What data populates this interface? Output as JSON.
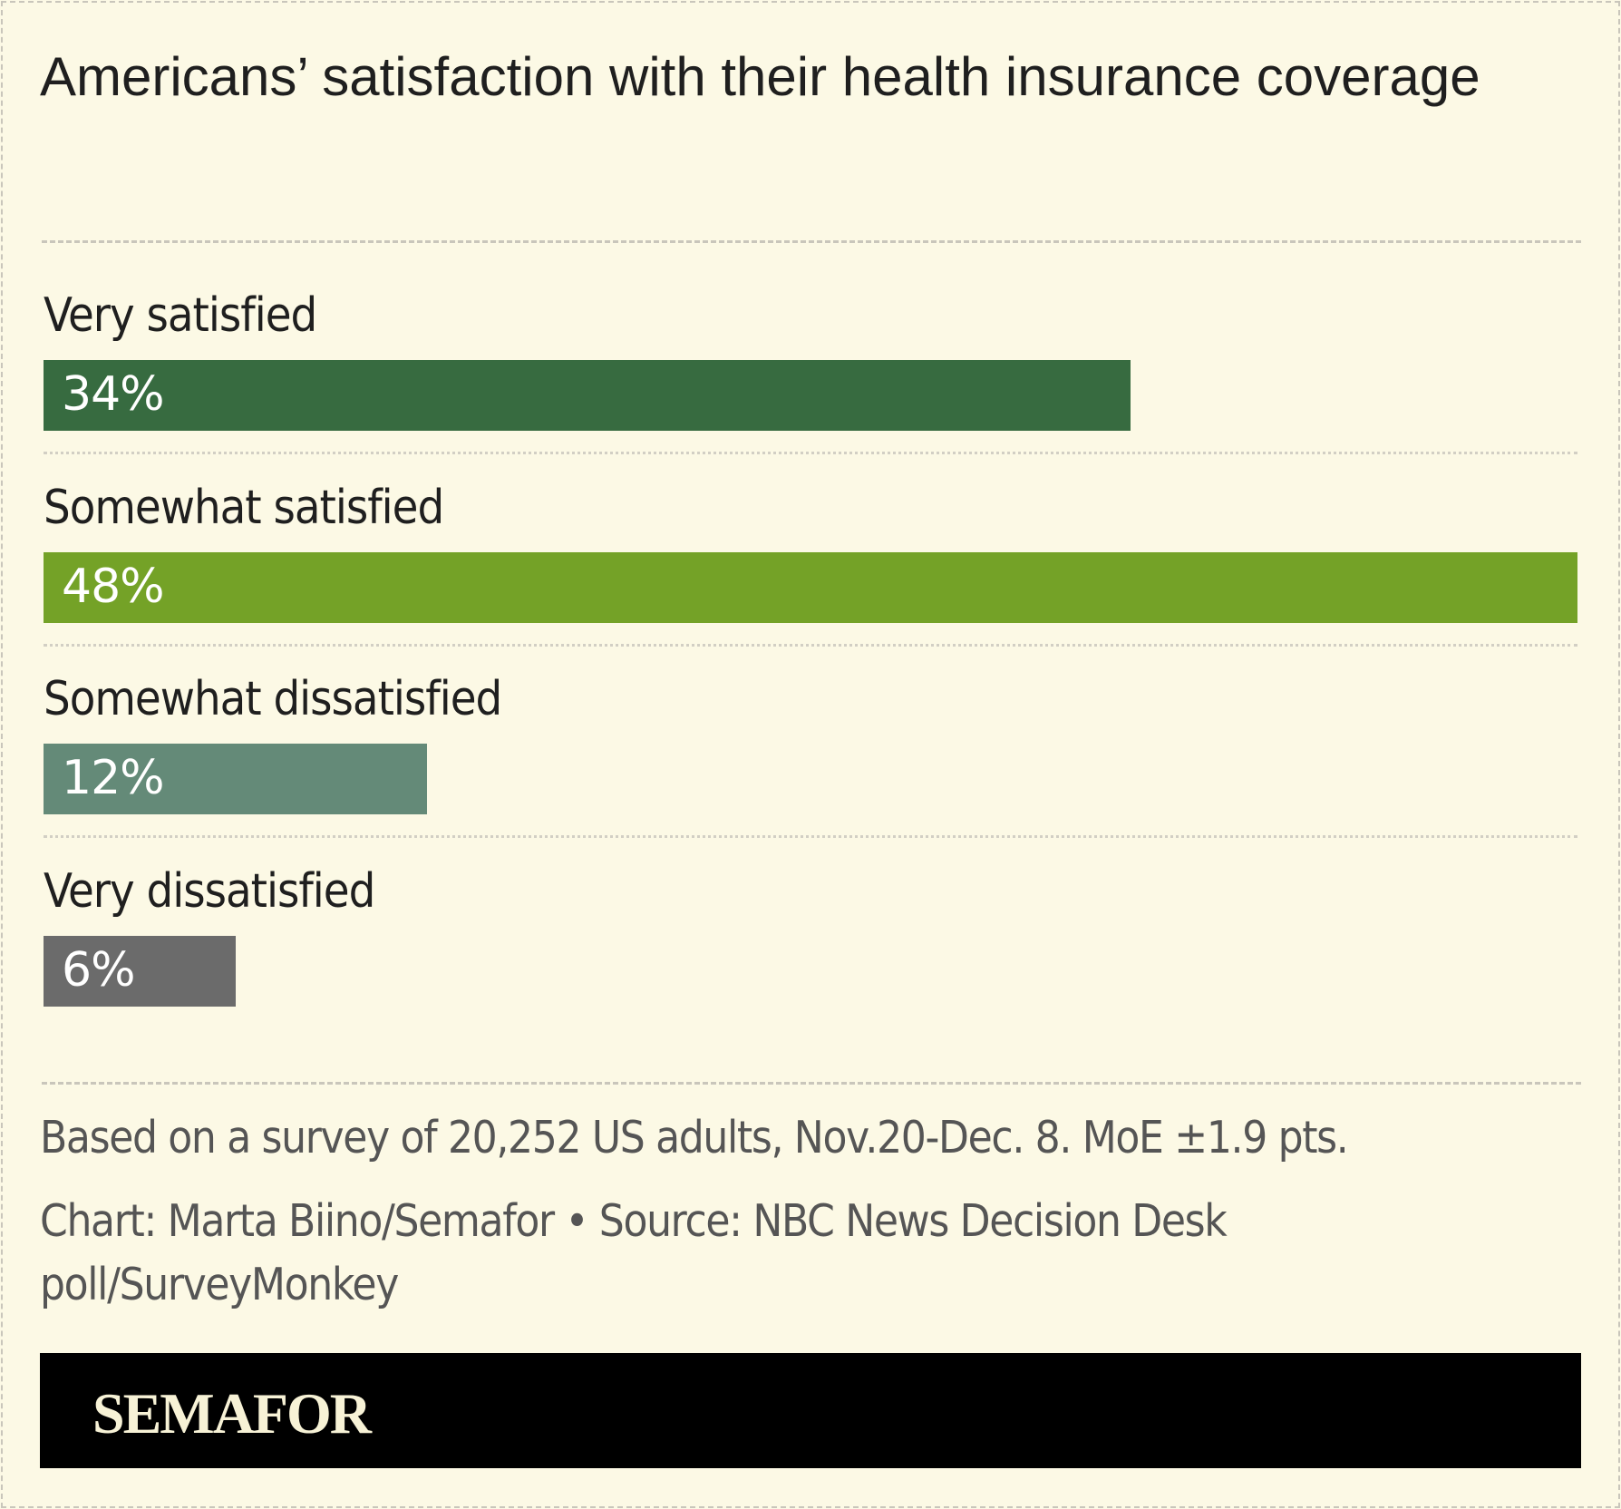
{
  "chart_data": {
    "type": "bar",
    "orientation": "horizontal",
    "title": "Americans’ satisfaction with their health insurance coverage",
    "categories": [
      "Very satisfied",
      "Somewhat satisfied",
      "Somewhat dissatisfied",
      "Very dissatisfied"
    ],
    "values": [
      34,
      48,
      12,
      6
    ],
    "value_labels": [
      "34%",
      "48%",
      "12%",
      "6%"
    ],
    "colors": [
      "#376b40",
      "#74a227",
      "#648a78",
      "#6b6b6b"
    ],
    "unit": "%",
    "grid": false
  },
  "footer": {
    "note": "Based on a survey of 20,252 US adults, Nov.20-Dec. 8. MoE ±1.9 pts.",
    "source_line1": "Chart: Marta Biino/Semafor • Source: NBC News Decision Desk",
    "source_line2": "poll/SurveyMonkey",
    "logo": "SEMAFOR"
  },
  "colors": {
    "background": "#fcf9e5",
    "logo_bar": "#000000"
  }
}
